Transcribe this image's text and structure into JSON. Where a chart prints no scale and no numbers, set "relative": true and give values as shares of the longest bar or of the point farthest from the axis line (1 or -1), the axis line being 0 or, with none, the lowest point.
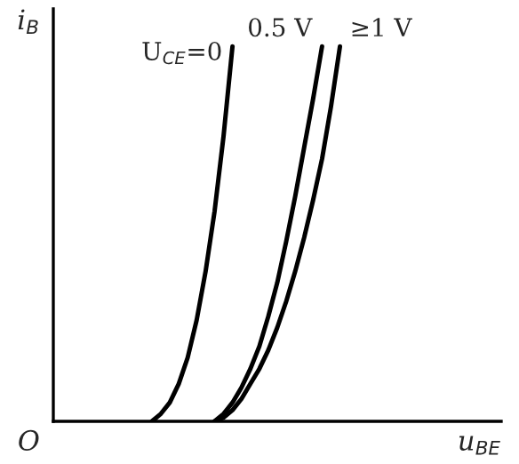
{
  "chart_data": {
    "type": "line",
    "relative": true,
    "ylabel": "i$_{B}$",
    "xlabel": "u$_{BE}$",
    "annotations": [
      "O"
    ],
    "categories": [
      null,
      null,
      null,
      null,
      null,
      null,
      null,
      null,
      null,
      null,
      null,
      null,
      null,
      null,
      null,
      null,
      null,
      null,
      null,
      null,
      null,
      null,
      null,
      null,
      null,
      null,
      null,
      null,
      null,
      null,
      null,
      null,
      null,
      null,
      null,
      null,
      null,
      null,
      null,
      null,
      null,
      null,
      null,
      null,
      null,
      null,
      null,
      null,
      null,
      null,
      null
    ],
    "series": [
      {
        "name": "U$_{CE}$=0",
        "color": "#000000",
        "values": [
          null,
          null,
          null,
          null,
          null,
          null,
          null,
          null,
          null,
          null,
          null,
          0,
          0.02,
          0.05,
          0.1,
          0.17,
          0.27,
          0.4,
          0.56,
          0.76,
          1.0,
          null,
          null,
          null,
          null,
          null,
          null,
          null,
          null,
          null,
          null,
          null,
          null,
          null,
          null,
          null,
          null,
          null,
          null,
          null,
          null,
          null,
          null,
          null,
          null,
          null,
          null,
          null,
          null,
          null,
          null
        ]
      },
      {
        "name": "0.5 V",
        "color": "#000000",
        "values": [
          null,
          null,
          null,
          null,
          null,
          null,
          null,
          null,
          null,
          null,
          null,
          null,
          null,
          null,
          null,
          null,
          null,
          null,
          0,
          0.02,
          0.05,
          0.09,
          0.14,
          0.2,
          0.28,
          0.37,
          0.48,
          0.6,
          0.73,
          0.86,
          1.0,
          null,
          null,
          null,
          null,
          null,
          null,
          null,
          null,
          null,
          null,
          null,
          null,
          null,
          null,
          null,
          null,
          null,
          null,
          null,
          null
        ]
      },
      {
        "name": "≥1 V",
        "color": "#000000",
        "values": [
          null,
          null,
          null,
          null,
          null,
          null,
          null,
          null,
          null,
          null,
          null,
          null,
          null,
          null,
          null,
          null,
          null,
          null,
          0,
          0.01,
          0.03,
          0.06,
          0.1,
          0.14,
          0.19,
          0.25,
          0.32,
          0.4,
          0.49,
          0.59,
          0.7,
          0.84,
          1.0,
          null,
          null,
          null,
          null,
          null,
          null,
          null,
          null,
          null,
          null,
          null,
          null,
          null,
          null,
          null,
          null,
          null,
          null
        ]
      }
    ],
    "legend": false
  }
}
